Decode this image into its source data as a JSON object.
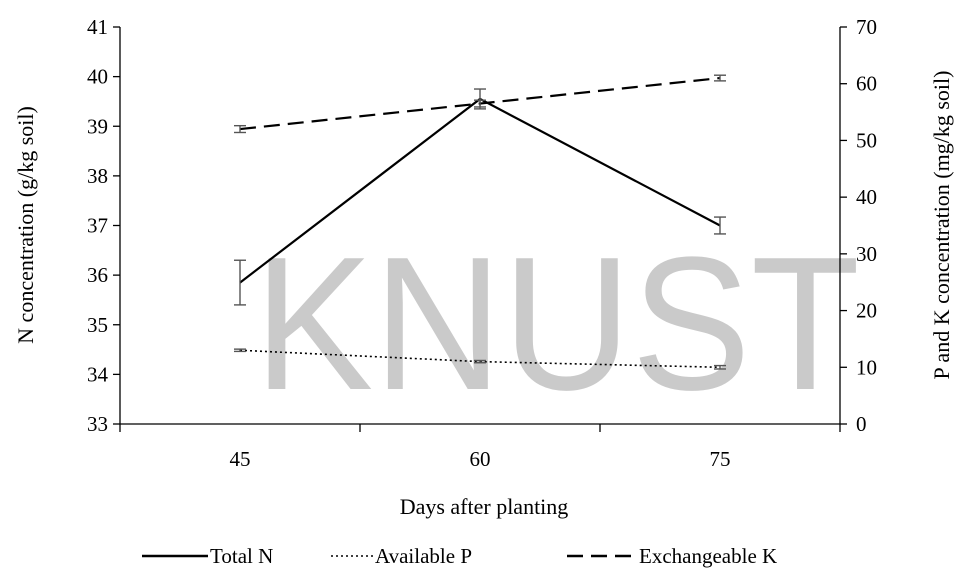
{
  "chart_data": {
    "type": "line",
    "x": [
      45,
      60,
      75
    ],
    "xlabel": "Days after planting",
    "ylabel_left": "N concentration (g/kg soil)",
    "ylabel_right": "P and K concentration (mg/kg soil)",
    "ylim_left": [
      33,
      41
    ],
    "ylim_right": [
      0,
      70
    ],
    "yticks_left": [
      33,
      34,
      35,
      36,
      37,
      38,
      39,
      40,
      41
    ],
    "yticks_right": [
      0,
      10,
      20,
      30,
      40,
      50,
      60,
      70
    ],
    "grid": false,
    "legend_position": "bottom",
    "series": [
      {
        "name": "Total N",
        "axis": "left",
        "style": "solid",
        "values": [
          35.85,
          39.55,
          37.0
        ],
        "error": [
          0.45,
          0.2,
          0.17
        ]
      },
      {
        "name": "Available P",
        "axis": "right",
        "style": "dotted",
        "values": [
          13.0,
          11.0,
          10.0
        ],
        "error": [
          0.2,
          0.2,
          0.3
        ]
      },
      {
        "name": "Exchangeable K",
        "axis": "right",
        "style": "dashed",
        "values": [
          52.0,
          56.5,
          61.0
        ],
        "error": [
          0.6,
          0.6,
          0.5
        ]
      }
    ]
  },
  "watermark": {
    "text": "KNUST",
    "color": "#9e9e9e"
  },
  "colors": {
    "line": "#000000",
    "error_bar": "#555555",
    "axis": "#000000"
  }
}
